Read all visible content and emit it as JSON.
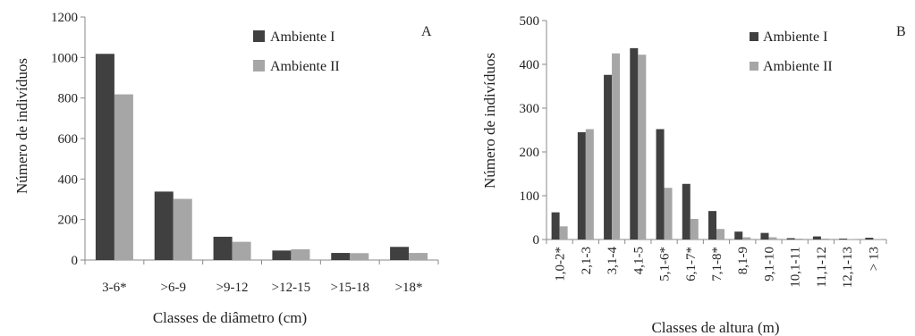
{
  "chart_data": [
    {
      "type": "bar",
      "panel_label": "A",
      "xlabel": "Classes de diâmetro (cm)",
      "ylabel": "Número de indivíduos",
      "ylim": [
        0,
        1200
      ],
      "yticks": [
        0,
        200,
        400,
        600,
        800,
        1000,
        1200
      ],
      "categories": [
        "3-6*",
        ">6-9",
        ">9-12",
        ">12-15",
        ">15-18",
        ">18*"
      ],
      "series": [
        {
          "name": "Ambiente I",
          "color": "#404040",
          "values": [
            1018,
            338,
            115,
            47,
            35,
            65
          ]
        },
        {
          "name": "Ambiente II",
          "color": "#a6a6a6",
          "values": [
            818,
            302,
            90,
            53,
            34,
            35
          ]
        }
      ],
      "legend": "top-right",
      "grid": false
    },
    {
      "type": "bar",
      "panel_label": "B",
      "xlabel": "Classes de altura (m)",
      "ylabel": "Número de indivíduos",
      "ylim": [
        0,
        500
      ],
      "yticks": [
        0,
        100,
        200,
        300,
        400,
        500
      ],
      "categories": [
        "1,0-2*",
        "2,1-3",
        "3,1-4",
        "4,1-5",
        "5,1-6*",
        "6,1-7*",
        "7,1-8*",
        "8,1-9",
        "9,1-10",
        "10,1-11",
        "11,1-12",
        "12,1-13",
        "> 13"
      ],
      "series": [
        {
          "name": "Ambiente I",
          "color": "#404040",
          "values": [
            62,
            245,
            376,
            437,
            252,
            127,
            65,
            18,
            15,
            3,
            7,
            2,
            4
          ]
        },
        {
          "name": "Ambiente II",
          "color": "#a6a6a6",
          "values": [
            30,
            252,
            425,
            422,
            118,
            47,
            24,
            5,
            5,
            2,
            2,
            1,
            1
          ]
        }
      ],
      "legend": "top-right",
      "grid": false
    }
  ]
}
